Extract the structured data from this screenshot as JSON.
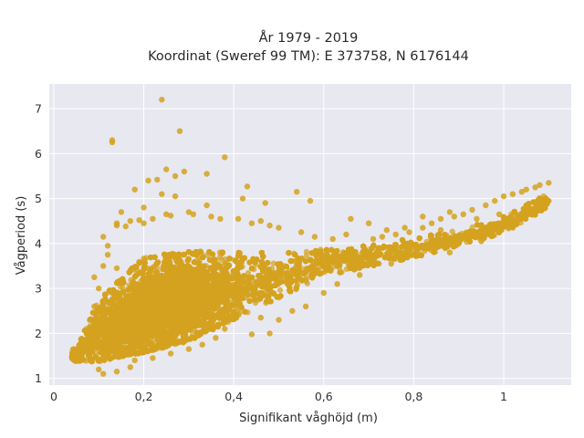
{
  "colors": {
    "plot_background": "#e8e8f0",
    "page_background": "#ffffff",
    "marker": "#d4a21f",
    "grid": "#ffffff"
  },
  "chart_data": {
    "type": "scatter",
    "title": [
      "År 1979 - 2019",
      "Koordinat (Sweref 99 TM): E 373758, N 6176144"
    ],
    "xlabel": "Signifikant våghöjd (m)",
    "ylabel": "Vågperiod (s)",
    "xlim": [
      -0.01,
      1.15
    ],
    "ylim": [
      0.85,
      7.55
    ],
    "grid": true,
    "legend": "none",
    "xticks": [
      {
        "value": 0,
        "label": "0"
      },
      {
        "value": 0.2,
        "label": "0,2"
      },
      {
        "value": 0.4,
        "label": "0,4"
      },
      {
        "value": 0.6,
        "label": "0,6"
      },
      {
        "value": 0.8,
        "label": "0,8"
      },
      {
        "value": 1.0,
        "label": "1"
      }
    ],
    "yticks": [
      {
        "value": 1,
        "label": "1"
      },
      {
        "value": 2,
        "label": "2"
      },
      {
        "value": 3,
        "label": "3"
      },
      {
        "value": 4,
        "label": "4"
      },
      {
        "value": 5,
        "label": "5"
      },
      {
        "value": 6,
        "label": "6"
      },
      {
        "value": 7,
        "label": "7"
      }
    ],
    "series": [
      {
        "color": "#d4a21f",
        "points": [
          [
            0.24,
            7.2
          ],
          [
            0.13,
            6.3
          ],
          [
            0.13,
            6.25
          ],
          [
            0.28,
            6.5
          ],
          [
            0.38,
            5.92
          ],
          [
            0.25,
            5.65
          ],
          [
            0.29,
            5.6
          ],
          [
            0.27,
            5.5
          ],
          [
            0.34,
            5.55
          ],
          [
            0.23,
            5.42
          ],
          [
            0.21,
            5.4
          ],
          [
            0.18,
            5.2
          ],
          [
            0.43,
            5.27
          ],
          [
            0.54,
            5.15
          ],
          [
            0.57,
            4.95
          ],
          [
            0.24,
            5.1
          ],
          [
            0.27,
            5.05
          ],
          [
            0.47,
            4.9
          ],
          [
            0.42,
            5.0
          ],
          [
            0.2,
            4.8
          ],
          [
            0.15,
            4.7
          ],
          [
            0.17,
            4.5
          ],
          [
            0.11,
            4.15
          ],
          [
            0.14,
            4.45
          ],
          [
            0.25,
            4.65
          ],
          [
            0.34,
            4.85
          ],
          [
            0.88,
            4.7
          ],
          [
            1.1,
            5.35
          ],
          [
            1.08,
            5.3
          ],
          [
            1.07,
            5.25
          ],
          [
            1.05,
            5.2
          ],
          [
            1.04,
            5.15
          ],
          [
            1.02,
            5.1
          ],
          [
            1.0,
            5.05
          ],
          [
            0.98,
            4.95
          ],
          [
            0.96,
            4.85
          ],
          [
            0.93,
            4.75
          ],
          [
            0.91,
            4.65
          ],
          [
            0.89,
            4.6
          ],
          [
            0.86,
            4.55
          ],
          [
            0.84,
            4.45
          ],
          [
            0.82,
            4.35
          ],
          [
            0.79,
            4.25
          ],
          [
            0.76,
            4.2
          ],
          [
            0.73,
            4.15
          ],
          [
            0.71,
            4.1
          ],
          [
            0.81,
            3.8
          ],
          [
            0.76,
            3.7
          ],
          [
            0.82,
            4.6
          ],
          [
            0.78,
            4.35
          ],
          [
            0.7,
            4.45
          ],
          [
            0.65,
            4.2
          ],
          [
            0.07,
            1.65
          ],
          [
            0.05,
            1.5
          ],
          [
            0.04,
            1.47
          ],
          [
            0.06,
            1.55
          ],
          [
            0.08,
            1.8
          ],
          [
            0.09,
            2.1
          ],
          [
            0.08,
            2.3
          ],
          [
            0.09,
            2.6
          ],
          [
            0.1,
            3.0
          ],
          [
            0.09,
            3.25
          ],
          [
            0.11,
            3.5
          ],
          [
            0.12,
            3.75
          ],
          [
            0.1,
            1.2
          ],
          [
            0.11,
            1.1
          ],
          [
            0.14,
            1.15
          ],
          [
            0.17,
            1.25
          ],
          [
            0.14,
            4.4
          ],
          [
            0.33,
            1.75
          ],
          [
            0.3,
            1.65
          ],
          [
            0.44,
            1.98
          ],
          [
            0.48,
            2.0
          ],
          [
            0.5,
            2.3
          ],
          [
            0.53,
            2.5
          ],
          [
            0.6,
            2.9
          ],
          [
            0.63,
            3.1
          ],
          [
            0.68,
            3.3
          ],
          [
            0.75,
            3.55
          ],
          [
            0.88,
            3.8
          ],
          [
            0.95,
            4.05
          ],
          [
            1.02,
            4.35
          ],
          [
            1.1,
            4.95
          ],
          [
            0.62,
            4.1
          ],
          [
            0.58,
            4.15
          ],
          [
            0.55,
            4.25
          ],
          [
            0.5,
            4.35
          ],
          [
            0.48,
            4.4
          ],
          [
            0.46,
            4.5
          ],
          [
            0.44,
            4.45
          ],
          [
            0.41,
            4.55
          ],
          [
            0.37,
            4.55
          ],
          [
            0.35,
            4.6
          ],
          [
            0.31,
            4.65
          ],
          [
            0.3,
            4.7
          ],
          [
            0.26,
            4.62
          ],
          [
            0.22,
            4.55
          ],
          [
            0.2,
            4.45
          ],
          [
            0.19,
            4.52
          ],
          [
            0.16,
            4.38
          ],
          [
            0.12,
            3.95
          ],
          [
            0.14,
            3.45
          ],
          [
            0.56,
            2.6
          ],
          [
            0.46,
            2.35
          ],
          [
            0.38,
            2.1
          ],
          [
            0.36,
            1.9
          ],
          [
            0.26,
            1.55
          ],
          [
            0.22,
            1.45
          ],
          [
            0.18,
            1.4
          ],
          [
            0.66,
            4.55
          ],
          [
            0.74,
            4.3
          ],
          [
            0.86,
            4.3
          ],
          [
            0.94,
            4.55
          ],
          [
            0.99,
            4.65
          ],
          [
            1.05,
            4.85
          ]
        ],
        "cloud": {
          "n": 18000,
          "x_range": [
            0.04,
            1.1
          ],
          "y_center": [
            [
              0.05,
              1.5
            ],
            [
              0.1,
              2.0
            ],
            [
              0.2,
              2.55
            ],
            [
              0.3,
              2.75
            ],
            [
              0.4,
              3.0
            ],
            [
              0.5,
              3.25
            ],
            [
              0.6,
              3.55
            ],
            [
              0.7,
              3.72
            ],
            [
              0.8,
              3.88
            ],
            [
              0.9,
              4.1
            ],
            [
              1.0,
              4.4
            ],
            [
              1.1,
              4.95
            ]
          ],
          "y_spread": [
            [
              0.05,
              0.12
            ],
            [
              0.1,
              0.55
            ],
            [
              0.2,
              0.85
            ],
            [
              0.3,
              0.8
            ],
            [
              0.4,
              0.6
            ],
            [
              0.5,
              0.4
            ],
            [
              0.6,
              0.25
            ],
            [
              0.7,
              0.2
            ],
            [
              0.8,
              0.17
            ],
            [
              0.9,
              0.15
            ],
            [
              1.0,
              0.15
            ],
            [
              1.1,
              0.12
            ]
          ],
          "density_peak_x": 0.24
        }
      }
    ]
  }
}
